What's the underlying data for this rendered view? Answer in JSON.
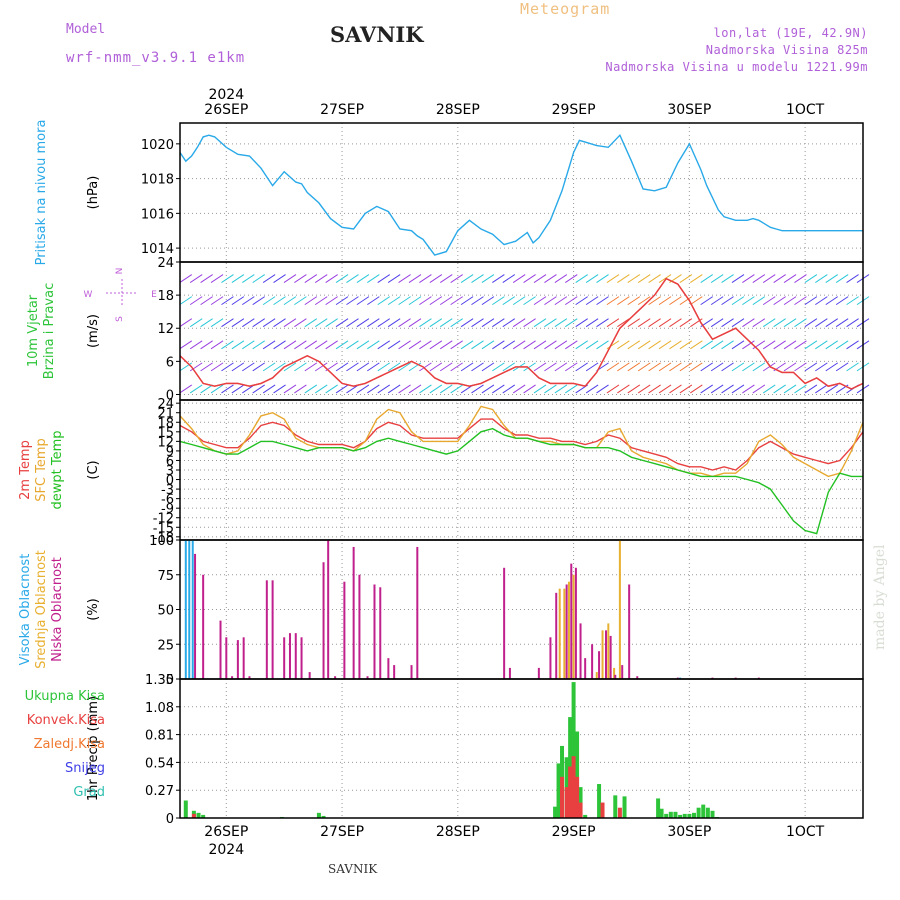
{
  "header": {
    "model_label": "Model",
    "model_name": "wrf-nmm_v3.9.1 e1km",
    "title": "SAVNIK",
    "meteogram_label": "Meteogram",
    "lonlat": "lon,lat (19E, 42.9N)",
    "altitude": "Nadmorska Visina 825m",
    "model_altitude": "Nadmorska Visina u modelu 1221.99m",
    "made_by": "made by Angel",
    "footer": "SAVNIK"
  },
  "colors": {
    "pressure": "#29a9e8",
    "temp2m": "#e84040",
    "sfc_temp": "#e8a830",
    "dewpt": "#22c022",
    "high_cloud": "#29a9e8",
    "mid_cloud": "#e8b030",
    "low_cloud": "#c0208c",
    "total_precip": "#2ec43a",
    "conv_precip": "#e84040",
    "frozen_precip": "#f07830",
    "snow": "#4040e8",
    "hail": "#30c0b0",
    "wind_label": "#2ec43a",
    "grid": "#999999"
  },
  "chart_data": [
    {
      "type": "line",
      "panel": "pressure",
      "ylabel_lines": [
        "Pritisak na nivou mora"
      ],
      "unit": "(hPa)",
      "x_range": [
        25.6,
        31.5
      ],
      "ylim": [
        1013.2,
        1021.2
      ],
      "yticks": [
        1014,
        1016,
        1018,
        1020
      ],
      "series": [
        {
          "name": "Pritisak na nivou mora",
          "color": "#29a9e8",
          "x": [
            25.6,
            25.65,
            25.7,
            25.75,
            25.8,
            25.85,
            25.9,
            26.0,
            26.1,
            26.2,
            26.3,
            26.4,
            26.5,
            26.6,
            26.65,
            26.7,
            26.8,
            26.9,
            27.0,
            27.1,
            27.2,
            27.3,
            27.4,
            27.5,
            27.6,
            27.65,
            27.7,
            27.8,
            27.9,
            28.0,
            28.1,
            28.2,
            28.3,
            28.4,
            28.5,
            28.6,
            28.65,
            28.7,
            28.8,
            28.9,
            29.0,
            29.05,
            29.1,
            29.2,
            29.3,
            29.4,
            29.5,
            29.6,
            29.7,
            29.8,
            29.9,
            30.0,
            30.1,
            30.15,
            30.2,
            30.25,
            30.3,
            30.4,
            30.5,
            30.55,
            30.6,
            30.65,
            30.7,
            30.75,
            30.8,
            30.9,
            31.0,
            31.1,
            31.2,
            31.3,
            31.4,
            31.5
          ],
          "y": [
            1019.5,
            1019.0,
            1019.3,
            1019.8,
            1020.4,
            1020.5,
            1020.4,
            1019.8,
            1019.4,
            1019.3,
            1018.6,
            1017.6,
            1018.4,
            1017.8,
            1017.7,
            1017.2,
            1016.6,
            1015.7,
            1015.2,
            1015.1,
            1016.0,
            1016.4,
            1016.1,
            1015.1,
            1015.0,
            1014.7,
            1014.5,
            1013.6,
            1013.8,
            1015.0,
            1015.6,
            1015.1,
            1014.8,
            1014.2,
            1014.4,
            1014.9,
            1014.3,
            1014.6,
            1015.6,
            1017.3,
            1019.5,
            1020.2,
            1020.1,
            1019.9,
            1019.8,
            1020.5,
            1019.0,
            1017.4,
            1017.3,
            1017.5,
            1018.9,
            1020.0,
            1018.5,
            1017.6,
            1016.9,
            1016.2,
            1015.8,
            1015.6,
            1015.6,
            1015.7,
            1015.6,
            1015.4,
            1015.2,
            1015.1,
            1015.0,
            1015.0,
            1015.0,
            1015.0,
            1015.0,
            1015.0,
            1015.0,
            1015.0
          ]
        }
      ]
    },
    {
      "type": "line",
      "panel": "wind",
      "ylabel_lines": [
        "10m Vjetar",
        "Brzina i Pravac"
      ],
      "unit": "(m/s)",
      "compass": {
        "n": "N",
        "s": "S",
        "e": "E",
        "w": "W"
      },
      "x_range": [
        25.6,
        31.5
      ],
      "ylim": [
        -1,
        24
      ],
      "yticks": [
        0,
        6,
        12,
        18,
        24
      ],
      "series": [
        {
          "name": "Brzina",
          "color": "#e84040",
          "x": [
            25.6,
            25.7,
            25.8,
            25.9,
            26.0,
            26.1,
            26.2,
            26.3,
            26.4,
            26.5,
            26.6,
            26.7,
            26.8,
            26.9,
            27.0,
            27.1,
            27.2,
            27.3,
            27.4,
            27.5,
            27.6,
            27.7,
            27.8,
            27.9,
            28.0,
            28.1,
            28.2,
            28.3,
            28.4,
            28.5,
            28.6,
            28.7,
            28.8,
            28.9,
            29.0,
            29.1,
            29.2,
            29.3,
            29.4,
            29.5,
            29.6,
            29.7,
            29.8,
            29.9,
            30.0,
            30.1,
            30.2,
            30.3,
            30.4,
            30.5,
            30.6,
            30.7,
            30.8,
            30.9,
            31.0,
            31.1,
            31.2,
            31.3,
            31.4,
            31.5
          ],
          "y": [
            7,
            5,
            2,
            1.5,
            2,
            2,
            1.5,
            2,
            3,
            5,
            6,
            7,
            6,
            4,
            2,
            1.5,
            2,
            3,
            4,
            5,
            6,
            5,
            3,
            2,
            2,
            1.5,
            2,
            3,
            4,
            5,
            5,
            3,
            2,
            2,
            2,
            1.5,
            4,
            8,
            12,
            14,
            16,
            18,
            21,
            20,
            17,
            13,
            10,
            11,
            12,
            10,
            8,
            5,
            4,
            4,
            2,
            3,
            1.5,
            2,
            1,
            2
          ]
        }
      ]
    },
    {
      "type": "line",
      "panel": "temperature",
      "ylabel_lines": [
        "2m Temp",
        "SFC Temp",
        "dewpt Temp"
      ],
      "unit": "(C)",
      "x_range": [
        25.6,
        31.5
      ],
      "ylim": [
        -19,
        25
      ],
      "yticks": [
        24,
        21,
        18,
        15,
        12,
        9,
        6,
        3,
        0,
        -3,
        -6,
        -9,
        -12,
        -15,
        -18
      ],
      "series": [
        {
          "name": "2m Temp",
          "color": "#e84040",
          "x": [
            25.6,
            25.7,
            25.8,
            25.9,
            26.0,
            26.1,
            26.2,
            26.3,
            26.4,
            26.5,
            26.6,
            26.7,
            26.8,
            26.9,
            27.0,
            27.1,
            27.2,
            27.3,
            27.4,
            27.5,
            27.6,
            27.7,
            27.8,
            27.9,
            28.0,
            28.1,
            28.2,
            28.3,
            28.4,
            28.5,
            28.6,
            28.7,
            28.8,
            28.9,
            29.0,
            29.1,
            29.2,
            29.3,
            29.4,
            29.5,
            29.6,
            29.7,
            29.8,
            29.9,
            30.0,
            30.1,
            30.2,
            30.3,
            30.4,
            30.5,
            30.6,
            30.7,
            30.8,
            30.9,
            31.0,
            31.1,
            31.2,
            31.3,
            31.4,
            31.5
          ],
          "y": [
            17,
            15,
            12,
            11,
            10,
            10,
            13,
            17,
            18,
            17,
            14,
            12,
            11,
            11,
            11,
            10,
            12,
            16,
            18,
            17,
            14,
            13,
            13,
            13,
            13,
            16,
            19,
            19,
            16,
            14,
            14,
            13,
            13,
            12,
            12,
            11,
            12,
            14,
            13,
            10,
            9,
            8,
            7,
            5,
            4,
            4,
            3,
            4,
            3,
            6,
            10,
            12,
            10,
            8,
            7,
            6,
            5,
            6,
            10,
            15
          ]
        },
        {
          "name": "SFC Temp",
          "color": "#e8a830",
          "x": [
            25.6,
            25.7,
            25.8,
            25.9,
            26.0,
            26.1,
            26.2,
            26.3,
            26.4,
            26.5,
            26.6,
            26.7,
            26.8,
            26.9,
            27.0,
            27.1,
            27.2,
            27.3,
            27.4,
            27.5,
            27.6,
            27.7,
            27.8,
            27.9,
            28.0,
            28.1,
            28.2,
            28.3,
            28.4,
            28.5,
            28.6,
            28.7,
            28.8,
            28.9,
            29.0,
            29.1,
            29.2,
            29.3,
            29.4,
            29.5,
            29.6,
            29.7,
            29.8,
            29.9,
            30.0,
            30.1,
            30.2,
            30.3,
            30.4,
            30.5,
            30.6,
            30.7,
            30.8,
            30.9,
            31.0,
            31.1,
            31.2,
            31.3,
            31.4,
            31.5
          ],
          "y": [
            20,
            16,
            11,
            9,
            8,
            9,
            14,
            20,
            21,
            19,
            13,
            11,
            10,
            10,
            10,
            9,
            12,
            19,
            22,
            21,
            15,
            12,
            12,
            12,
            12,
            17,
            23,
            22,
            17,
            13,
            13,
            12,
            12,
            11,
            11,
            10,
            10,
            15,
            16,
            9,
            7,
            6,
            5,
            3,
            2,
            2,
            1,
            2,
            2,
            5,
            12,
            14,
            11,
            7,
            5,
            3,
            1,
            2,
            9,
            18
          ]
        },
        {
          "name": "dewpt Temp",
          "color": "#22c022",
          "x": [
            25.6,
            25.7,
            25.8,
            25.9,
            26.0,
            26.1,
            26.2,
            26.3,
            26.4,
            26.5,
            26.6,
            26.7,
            26.8,
            26.9,
            27.0,
            27.1,
            27.2,
            27.3,
            27.4,
            27.5,
            27.6,
            27.7,
            27.8,
            27.9,
            28.0,
            28.1,
            28.2,
            28.3,
            28.4,
            28.5,
            28.6,
            28.7,
            28.8,
            28.9,
            29.0,
            29.1,
            29.2,
            29.3,
            29.4,
            29.5,
            29.6,
            29.7,
            29.8,
            29.9,
            30.0,
            30.1,
            30.2,
            30.3,
            30.4,
            30.5,
            30.6,
            30.7,
            30.8,
            30.9,
            31.0,
            31.1,
            31.2,
            31.3,
            31.4,
            31.5
          ],
          "y": [
            12,
            11,
            10,
            9,
            8,
            8,
            10,
            12,
            12,
            11,
            10,
            9,
            10,
            10,
            10,
            9,
            10,
            12,
            13,
            12,
            11,
            10,
            9,
            8,
            9,
            12,
            15,
            16,
            14,
            13,
            13,
            12,
            11,
            11,
            11,
            10,
            10,
            10,
            9,
            7,
            6,
            5,
            4,
            3,
            2,
            1,
            1,
            1,
            1,
            0,
            -1,
            -3,
            -8,
            -13,
            -16,
            -17,
            -4,
            2,
            1,
            1
          ]
        }
      ]
    },
    {
      "type": "bar",
      "panel": "clouds",
      "ylabel_lines": [
        "Visoka Oblacnost",
        "Srednja Oblacnost",
        "Niska Oblacnost"
      ],
      "unit": "(%)",
      "x_range": [
        25.6,
        31.5
      ],
      "ylim": [
        0,
        100
      ],
      "yticks": [
        0,
        25,
        50,
        75,
        100
      ],
      "series": [
        {
          "name": "Visoka Oblacnost",
          "color": "#29a9e8",
          "x": [
            25.65,
            25.68,
            25.71,
            29.92
          ],
          "values": [
            100,
            100,
            100,
            1
          ]
        },
        {
          "name": "Srednja Oblacnost",
          "color": "#e8b030",
          "x": [
            28.88,
            28.92,
            28.96,
            29.0,
            29.2,
            29.25,
            29.3,
            29.35,
            29.4
          ],
          "values": [
            65,
            65,
            70,
            75,
            5,
            35,
            40,
            8,
            100
          ]
        },
        {
          "name": "Niska Oblacnost",
          "color": "#c0208c",
          "x": [
            25.73,
            25.8,
            25.95,
            26.0,
            26.05,
            26.1,
            26.15,
            26.2,
            26.35,
            26.4,
            26.5,
            26.55,
            26.6,
            26.65,
            26.72,
            26.84,
            26.88,
            26.94,
            27.02,
            27.1,
            27.15,
            27.22,
            27.28,
            27.33,
            27.4,
            27.45,
            27.6,
            27.65,
            28.4,
            28.45,
            28.7,
            28.8,
            28.85,
            28.94,
            28.98,
            29.02,
            29.06,
            29.1,
            29.16,
            29.22,
            29.28,
            29.32,
            29.36,
            29.42,
            29.48,
            29.55,
            29.9,
            30.2,
            30.4,
            30.6
          ],
          "values": [
            90,
            75,
            42,
            30,
            2,
            28,
            30,
            2,
            71,
            71,
            30,
            33,
            33,
            30,
            5,
            84,
            100,
            2,
            70,
            95,
            75,
            2,
            68,
            66,
            15,
            10,
            10,
            95,
            80,
            8,
            8,
            30,
            62,
            68,
            83,
            80,
            40,
            15,
            25,
            20,
            35,
            31,
            3,
            10,
            68,
            2,
            1,
            1,
            1,
            1
          ]
        }
      ]
    },
    {
      "type": "bar",
      "panel": "precip",
      "ylabel_lines": [
        "1hr Precip (mm)"
      ],
      "unit": "",
      "legend": [
        "Ukupna Kisa",
        "Konvek.Kisa",
        "Zaledj.Kisa",
        "Snijeg",
        "Grad"
      ],
      "x_range": [
        25.6,
        31.5
      ],
      "ylim": [
        0,
        1.35
      ],
      "yticks": [
        0,
        0.27,
        0.54,
        0.81,
        1.08,
        1.35
      ],
      "series": [
        {
          "name": "Ukupna Kisa",
          "color": "#2ec43a",
          "x": [
            25.65,
            25.72,
            25.76,
            25.8,
            26.48,
            26.8,
            26.84,
            28.84,
            28.87,
            28.9,
            28.94,
            28.97,
            29.0,
            29.03,
            29.06,
            29.1,
            29.22,
            29.36,
            29.44,
            29.73,
            29.76,
            29.8,
            29.84,
            29.88,
            29.92,
            29.96,
            30.0,
            30.04,
            30.08,
            30.12,
            30.16,
            30.2,
            30.24,
            31.7
          ],
          "values": [
            0.17,
            0.07,
            0.05,
            0.03,
            0.01,
            0.05,
            0.02,
            0.11,
            0.53,
            0.7,
            0.59,
            0.98,
            1.32,
            0.84,
            0.3,
            0.03,
            0.33,
            0.22,
            0.21,
            0.19,
            0.09,
            0.04,
            0.06,
            0.06,
            0.03,
            0.04,
            0.04,
            0.05,
            0.1,
            0.13,
            0.1,
            0.07,
            0.01,
            0.0
          ]
        },
        {
          "name": "Konvek.Kisa",
          "color": "#e84040",
          "x": [
            25.72,
            28.9,
            28.94,
            28.97,
            29.0,
            29.03,
            29.06,
            29.25,
            29.4
          ],
          "values": [
            0.04,
            0.4,
            0.3,
            0.5,
            0.6,
            0.4,
            0.15,
            0.15,
            0.1
          ]
        }
      ]
    }
  ],
  "date_axis": {
    "year_top": "2024",
    "year_bottom": "2024",
    "days": [
      {
        "x": 26.0,
        "label": "26SEP"
      },
      {
        "x": 27.0,
        "label": "27SEP"
      },
      {
        "x": 28.0,
        "label": "28SEP"
      },
      {
        "x": 29.0,
        "label": "29SEP"
      },
      {
        "x": 30.0,
        "label": "30SEP"
      },
      {
        "x": 31.0,
        "label": "1OCT"
      }
    ]
  }
}
